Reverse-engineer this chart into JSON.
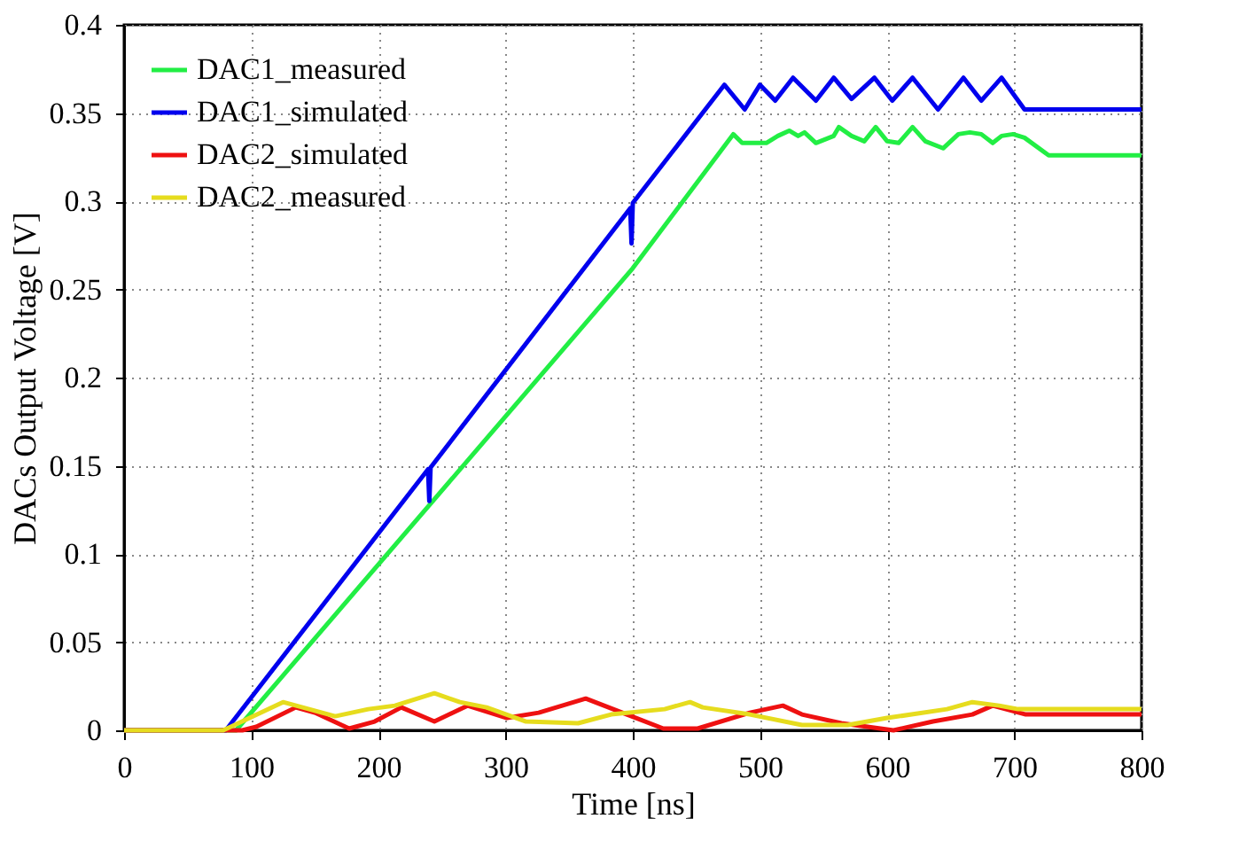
{
  "chart_data": {
    "type": "line",
    "xlabel": "Time [ns]",
    "ylabel": "DACs Output Voltage [V]",
    "xlim": [
      0,
      800
    ],
    "xticks": [
      0,
      100,
      200,
      300,
      400,
      500,
      600,
      700,
      800
    ],
    "ylim": [
      0,
      0.4
    ],
    "yticks": [
      0,
      0.05,
      0.1,
      0.15,
      0.2,
      0.25,
      0.3,
      0.35,
      0.4
    ],
    "grid": true,
    "legend": "top left",
    "marker": "none",
    "line_style": "solid",
    "series": [
      {
        "name": "DAC1_measured",
        "color": "#22ee44",
        "x": [
          0,
          88,
          400,
          479,
          486,
          505,
          514,
          523,
          530,
          535,
          544,
          558,
          562,
          572,
          582,
          591,
          600,
          609,
          620,
          630,
          644,
          656,
          665,
          674,
          683,
          690,
          699,
          708,
          727,
          800
        ],
        "values": [
          0,
          0,
          0.262,
          0.338,
          0.333,
          0.333,
          0.337,
          0.34,
          0.337,
          0.339,
          0.333,
          0.337,
          0.342,
          0.337,
          0.334,
          0.342,
          0.334,
          0.333,
          0.342,
          0.334,
          0.33,
          0.338,
          0.339,
          0.338,
          0.333,
          0.337,
          0.338,
          0.336,
          0.326,
          0.326
        ]
      },
      {
        "name": "DAC1_simulated",
        "color": "#0000ee",
        "x": [
          0,
          80,
          239,
          240,
          241,
          398,
          399,
          400,
          472,
          488,
          500,
          512,
          526,
          544,
          558,
          572,
          590,
          604,
          620,
          640,
          660,
          674,
          690,
          708,
          800
        ],
        "values": [
          0,
          0,
          0.148,
          0.13,
          0.149,
          0.296,
          0.276,
          0.299,
          0.366,
          0.352,
          0.366,
          0.357,
          0.37,
          0.357,
          0.37,
          0.358,
          0.37,
          0.357,
          0.37,
          0.352,
          0.37,
          0.357,
          0.37,
          0.352,
          0.352
        ]
      },
      {
        "name": "DAC2_simulated",
        "color": "#ee1111",
        "x": [
          0,
          93,
          104,
          135,
          150,
          177,
          197,
          218,
          244,
          270,
          301,
          326,
          363,
          399,
          424,
          451,
          492,
          518,
          533,
          564,
          605,
          636,
          667,
          683,
          709,
          800
        ],
        "values": [
          0,
          0,
          0.002,
          0.013,
          0.01,
          0.001,
          0.005,
          0.013,
          0.005,
          0.014,
          0.007,
          0.01,
          0.018,
          0.008,
          0.001,
          0.001,
          0.01,
          0.014,
          0.009,
          0.004,
          0,
          0.005,
          0.009,
          0.014,
          0.009,
          0.009
        ]
      },
      {
        "name": "DAC2_measured",
        "color": "#e6dc1e",
        "x": [
          0,
          78,
          125,
          166,
          192,
          213,
          244,
          264,
          285,
          316,
          357,
          383,
          425,
          445,
          455,
          492,
          533,
          569,
          600,
          647,
          667,
          688,
          703,
          800
        ],
        "values": [
          0,
          0,
          0.016,
          0.008,
          0.012,
          0.014,
          0.021,
          0.016,
          0.013,
          0.005,
          0.004,
          0.009,
          0.012,
          0.016,
          0.013,
          0.009,
          0.003,
          0.003,
          0.007,
          0.012,
          0.016,
          0.014,
          0.012,
          0.012
        ]
      }
    ]
  }
}
